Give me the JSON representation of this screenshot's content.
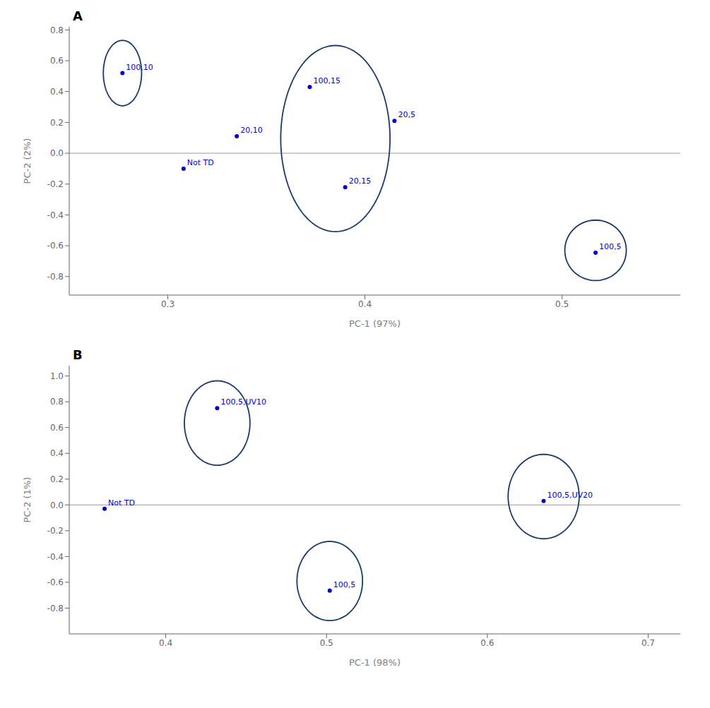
{
  "chart_data": [
    {
      "type": "scatter",
      "title": "A",
      "x_label": "PC-1 (97%)",
      "y_label": "PC-2 (2%)",
      "xlim": [
        0.25,
        0.56
      ],
      "ylim": [
        -0.92,
        0.82
      ],
      "xticks": [
        0.3,
        0.4,
        0.5
      ],
      "yticks": [
        -0.8,
        -0.6,
        -0.4,
        -0.2,
        {
          "value": 0,
          "label": "0.0"
        },
        0.2,
        0.4,
        0.6,
        0.8
      ],
      "series": [
        {
          "type": "scatter",
          "color": "#0000CC",
          "x": [
            0.277,
            0.372,
            0.415,
            0.335,
            0.308,
            0.39,
            0.517
          ],
          "y": [
            0.52,
            0.43,
            0.21,
            0.11,
            -0.1,
            -0.22,
            -0.645
          ],
          "labels": [
            "100,10",
            "100,15",
            "20,5",
            "20,10",
            "Not TD",
            "20,15",
            "100,5"
          ]
        },
        {
          "type": "ellipse",
          "color": "#1a3a6b",
          "cx": [
            0.277,
            0.385,
            0.517
          ],
          "cy": [
            0.52,
            0.095,
            -0.63
          ],
          "rx": [
            0.0097042,
            0.0277265,
            0.0155962
          ],
          "ry": [
            0.212168,
            0.603862,
            0.195847
          ]
        }
      ]
    },
    {
      "type": "scatter",
      "title": "B",
      "x_label": "PC-1 (98%)",
      "y_label": "PC-2 (1%)",
      "xlim": [
        0.34,
        0.72
      ],
      "ylim": [
        -1.0,
        1.08
      ],
      "xticks": [
        0.4,
        0.5,
        0.6,
        0.7
      ],
      "yticks": [
        -0.8,
        -0.6,
        -0.4,
        -0.2,
        {
          "value": 0,
          "label": "0.0"
        },
        0.2,
        0.4,
        0.6,
        0.8,
        {
          "value": 1,
          "label": "1.0"
        }
      ],
      "series": [
        {
          "type": "scatter",
          "color": "#0000CC",
          "x": [
            0.432,
            0.362,
            0.635,
            0.502
          ],
          "y": [
            0.75,
            -0.03,
            0.03,
            -0.665
          ],
          "labels": [
            "100,5,UV10",
            "Not TD",
            "100,5,UV20",
            "100,5"
          ]
        },
        {
          "type": "ellipse",
          "color": "#1a3a6b",
          "cx": [
            0.432,
            0.635,
            0.502
          ],
          "cy": [
            0.635,
            0.065,
            -0.59
          ],
          "rx": [
            0.020392,
            0.022092,
            0.020392
          ],
          "ry": [
            0.327384,
            0.327384,
            0.306923
          ]
        }
      ]
    }
  ]
}
